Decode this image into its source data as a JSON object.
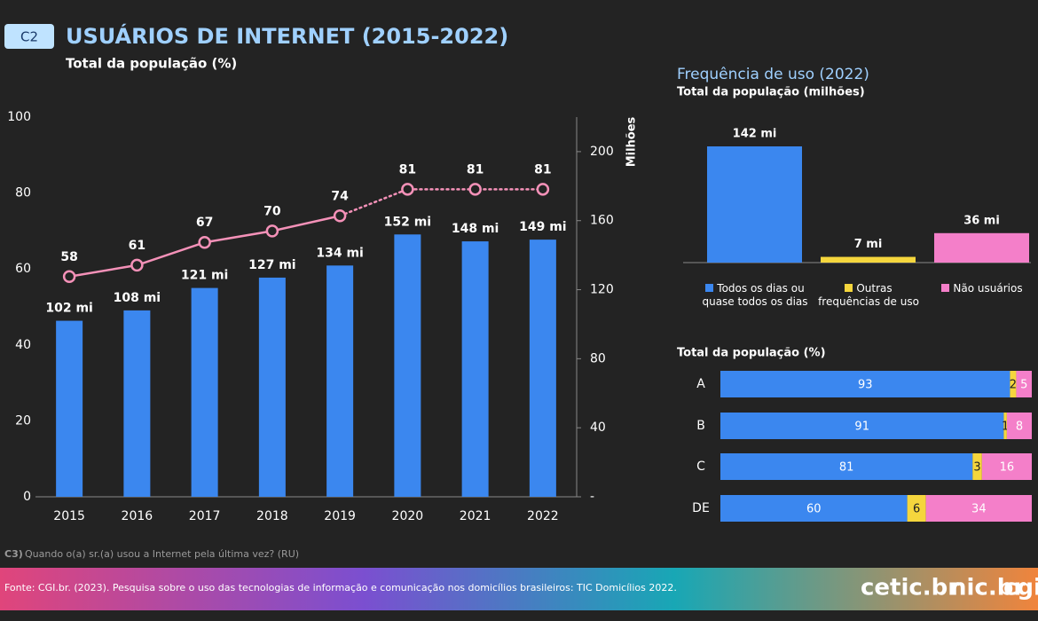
{
  "header": {
    "code": "C2",
    "title": "USUÁRIOS DE INTERNET (2015-2022)",
    "subtitle": "Total da população (%)"
  },
  "chart_data": [
    {
      "type": "combo",
      "categories": [
        "2015",
        "2016",
        "2017",
        "2018",
        "2019",
        "2020",
        "2021",
        "2022"
      ],
      "ylim": [
        0,
        100
      ],
      "yticks": [
        0,
        20,
        40,
        60,
        80,
        100
      ],
      "y2lim": [
        0,
        220
      ],
      "y2ticks": [
        {
          "value": 0,
          "label": "-"
        },
        40,
        80,
        120,
        160,
        200
      ],
      "y2label": "Milhões",
      "series": [
        {
          "type": "bar",
          "axis": "y2",
          "color": "#3b87ef",
          "values": [
            102,
            108,
            121,
            127,
            134,
            152,
            148,
            149
          ],
          "value_labels": [
            "102 mi",
            "108 mi",
            "121 mi",
            "127 mi",
            "134 mi",
            "152 mi",
            "148 mi",
            "149 mi"
          ]
        },
        {
          "type": "line",
          "color": "#f491b8",
          "values": [
            58,
            61,
            67,
            70,
            74,
            81,
            81,
            81
          ],
          "dashed_from": "2019"
        }
      ]
    },
    {
      "type": "bar",
      "title": "Frequência de uso (2022)",
      "subtitle": "Total da população (milhões)",
      "categories": [
        "Todos os dias ou quase todos os dias",
        "Outras frequências de uso",
        "Não usuários"
      ],
      "values": [
        142,
        7,
        36
      ],
      "value_labels": [
        "142 mi",
        "7 mi",
        "36 mi"
      ],
      "colors": [
        "#3b87ef",
        "#f5d63d",
        "#f47fc9"
      ]
    },
    {
      "type": "stacked_barh",
      "title": "Total da população (%)",
      "categories": [
        "A",
        "B",
        "C",
        "DE"
      ],
      "series": [
        {
          "color": "#3b87ef",
          "values": [
            93,
            91,
            81,
            60
          ]
        },
        {
          "color": "#f5d63d",
          "values": [
            2,
            1,
            3,
            6
          ]
        },
        {
          "color": "#f47fc9",
          "values": [
            5,
            8,
            16,
            34
          ]
        }
      ]
    }
  ],
  "note": {
    "prefix": "C3)",
    "text": "Quando o(a) sr.(a) usou a Internet pela última vez? (RU)"
  },
  "footer": {
    "source": "Fonte: CGI.br. (2023). Pesquisa sobre o uso das tecnologias de informação e comunicação nos domicílios brasileiros: TIC Domicílios 2022.",
    "logos": [
      "cetic.br",
      "nic.br",
      "cgi"
    ]
  }
}
